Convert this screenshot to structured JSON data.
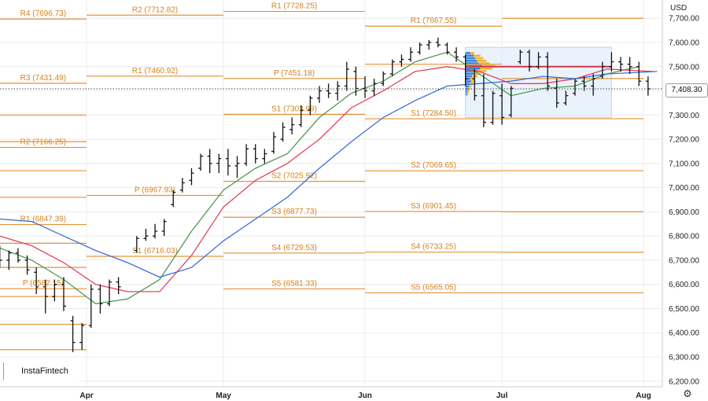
{
  "currency": "USD",
  "watermark": "InstaFintech",
  "last_price_label": "7,408.30",
  "chart_data": {
    "type": "ohlc",
    "yaxis": {
      "min": 6200,
      "max": 7700,
      "ticks": [
        "7,700.00",
        "7,600.00",
        "7,500.00",
        "7,400.00",
        "7,300.00",
        "7,200.00",
        "7,100.00",
        "7,000.00",
        "6,900.00",
        "6,800.00",
        "6,700.00",
        "6,600.00",
        "6,500.00",
        "6,400.00",
        "6,300.00",
        "6,200.00"
      ],
      "tick_values": [
        7700,
        7600,
        7500,
        7400,
        7300,
        7200,
        7100,
        7000,
        6900,
        6800,
        6700,
        6600,
        6500,
        6400,
        6300,
        6200
      ]
    },
    "xaxis": {
      "start": "2025-03-13",
      "end": "2025-08-06",
      "months": [
        {
          "label": "Apr",
          "date": "2025-04-01"
        },
        {
          "label": "May",
          "date": "2025-05-01"
        },
        {
          "label": "Jun",
          "date": "2025-06-01"
        },
        {
          "label": "Jul",
          "date": "2025-07-01"
        },
        {
          "label": "Aug",
          "date": "2025-08-01"
        }
      ]
    },
    "last_price": 7408.3,
    "pivot_levels": [
      {
        "label": "R4 (7696.73)",
        "value": 7696.73,
        "from": "2025-03-13",
        "to": "2025-04-01"
      },
      {
        "label": "R3 (7431.49)",
        "value": 7431.49,
        "from": "2025-03-13",
        "to": "2025-04-01"
      },
      {
        "label": "R2 (7166.25)",
        "value": 7166.25,
        "from": "2025-03-13",
        "to": "2025-04-01"
      },
      {
        "label": "R1 (6847.39)",
        "value": 6847.39,
        "from": "2025-03-13",
        "to": "2025-04-01"
      },
      {
        "label": "P (6582.15)",
        "value": 6582.15,
        "from": "2025-03-13",
        "to": "2025-04-01"
      },
      {
        "label": "R2 (7712.82)",
        "value": 7712.82,
        "from": "2025-04-01",
        "to": "2025-05-01"
      },
      {
        "label": "R1 (7460.92)",
        "value": 7460.92,
        "from": "2025-04-01",
        "to": "2025-05-01"
      },
      {
        "label": "P (6967.93)",
        "value": 6967.93,
        "from": "2025-04-01",
        "to": "2025-05-01"
      },
      {
        "label": "S1 (6716.03)",
        "value": 6716.03,
        "from": "2025-04-01",
        "to": "2025-05-01"
      },
      {
        "label": "R1 (7728.25)",
        "value": 7728.25,
        "from": "2025-05-01",
        "to": "2025-06-01"
      },
      {
        "label": "P (7451.18)",
        "value": 7451.18,
        "from": "2025-05-01",
        "to": "2025-06-01"
      },
      {
        "label": "S1 (7302.99)",
        "value": 7302.99,
        "from": "2025-05-01",
        "to": "2025-06-01"
      },
      {
        "label": "S2 (7025.92)",
        "value": 7025.92,
        "from": "2025-05-01",
        "to": "2025-06-01"
      },
      {
        "label": "S3 (6877.73)",
        "value": 6877.73,
        "from": "2025-05-01",
        "to": "2025-06-01"
      },
      {
        "label": "S4 (6729.53)",
        "value": 6729.53,
        "from": "2025-05-01",
        "to": "2025-06-01"
      },
      {
        "label": "S5 (6581.33)",
        "value": 6581.33,
        "from": "2025-05-01",
        "to": "2025-06-01"
      },
      {
        "label": "R1 (7667.55)",
        "value": 7667.55,
        "from": "2025-06-01",
        "to": "2025-07-01"
      },
      {
        "label": "S1 (7284.50)",
        "value": 7284.5,
        "from": "2025-06-01",
        "to": "2025-07-01"
      },
      {
        "label": "S2 (7069.65)",
        "value": 7069.65,
        "from": "2025-06-01",
        "to": "2025-07-01"
      },
      {
        "label": "S3 (6901.45)",
        "value": 6901.45,
        "from": "2025-06-01",
        "to": "2025-07-01"
      },
      {
        "label": "S4 (6733.25)",
        "value": 6733.25,
        "from": "2025-06-01",
        "to": "2025-07-01"
      },
      {
        "label": "S5 (6565.05)",
        "value": 6565.05,
        "from": "2025-06-01",
        "to": "2025-07-01"
      }
    ],
    "unlabeled_levels": [
      {
        "value": 7300,
        "from": "2025-03-13",
        "to": "2025-04-01"
      },
      {
        "value": 7190,
        "from": "2025-03-13",
        "to": "2025-04-01"
      },
      {
        "value": 7070,
        "from": "2025-03-13",
        "to": "2025-04-01"
      },
      {
        "value": 6960,
        "from": "2025-03-13",
        "to": "2025-04-01"
      },
      {
        "value": 6770,
        "from": "2025-03-13",
        "to": "2025-04-01"
      },
      {
        "value": 6670,
        "from": "2025-03-13",
        "to": "2025-04-01"
      },
      {
        "value": 6550,
        "from": "2025-03-13",
        "to": "2025-04-01"
      },
      {
        "value": 6435,
        "from": "2025-03-13",
        "to": "2025-04-01"
      },
      {
        "value": 6330,
        "from": "2025-03-13",
        "to": "2025-04-01"
      },
      {
        "value": 7510,
        "from": "2025-06-01",
        "to": "2025-07-01"
      },
      {
        "value": 7700,
        "from": "2025-07-01",
        "to": "2025-08-01"
      },
      {
        "value": 7451,
        "from": "2025-07-01",
        "to": "2025-08-01"
      },
      {
        "value": 7285,
        "from": "2025-07-01",
        "to": "2025-08-01"
      },
      {
        "value": 7070,
        "from": "2025-07-01",
        "to": "2025-08-01"
      },
      {
        "value": 6900,
        "from": "2025-07-01",
        "to": "2025-08-01"
      },
      {
        "value": 6733,
        "from": "2025-07-01",
        "to": "2025-08-01"
      },
      {
        "value": 6565,
        "from": "2025-07-01",
        "to": "2025-08-01"
      }
    ],
    "bars": [
      {
        "date": "2025-03-13",
        "o": 6720,
        "h": 6760,
        "l": 6670,
        "c": 6700
      },
      {
        "date": "2025-03-15",
        "o": 6700,
        "h": 6740,
        "l": 6660,
        "c": 6730
      },
      {
        "date": "2025-03-17",
        "o": 6730,
        "h": 6750,
        "l": 6690,
        "c": 6700
      },
      {
        "date": "2025-03-19",
        "o": 6700,
        "h": 6720,
        "l": 6640,
        "c": 6660
      },
      {
        "date": "2025-03-21",
        "o": 6650,
        "h": 6670,
        "l": 6560,
        "c": 6590
      },
      {
        "date": "2025-03-23",
        "o": 6590,
        "h": 6620,
        "l": 6480,
        "c": 6550
      },
      {
        "date": "2025-03-25",
        "o": 6550,
        "h": 6620,
        "l": 6530,
        "c": 6600
      },
      {
        "date": "2025-03-27",
        "o": 6600,
        "h": 6630,
        "l": 6490,
        "c": 6510
      },
      {
        "date": "2025-03-29",
        "o": 6450,
        "h": 6470,
        "l": 6320,
        "c": 6360
      },
      {
        "date": "2025-03-31",
        "o": 6360,
        "h": 6440,
        "l": 6330,
        "c": 6430
      },
      {
        "date": "2025-04-02",
        "o": 6430,
        "h": 6600,
        "l": 6420,
        "c": 6580
      },
      {
        "date": "2025-04-04",
        "o": 6580,
        "h": 6600,
        "l": 6480,
        "c": 6520
      },
      {
        "date": "2025-04-06",
        "o": 6520,
        "h": 6620,
        "l": 6510,
        "c": 6610
      },
      {
        "date": "2025-04-08",
        "o": 6610,
        "h": 6630,
        "l": 6560,
        "c": 6590
      },
      {
        "date": "2025-04-12",
        "o": 6740,
        "h": 6800,
        "l": 6730,
        "c": 6790
      },
      {
        "date": "2025-04-14",
        "o": 6790,
        "h": 6830,
        "l": 6780,
        "c": 6800
      },
      {
        "date": "2025-04-16",
        "o": 6800,
        "h": 6850,
        "l": 6790,
        "c": 6820
      },
      {
        "date": "2025-04-18",
        "o": 6820,
        "h": 6870,
        "l": 6800,
        "c": 6860
      },
      {
        "date": "2025-04-20",
        "o": 6930,
        "h": 6990,
        "l": 6920,
        "c": 6980
      },
      {
        "date": "2025-04-22",
        "o": 6990,
        "h": 7040,
        "l": 6980,
        "c": 7020
      },
      {
        "date": "2025-04-24",
        "o": 7030,
        "h": 7080,
        "l": 7010,
        "c": 7060
      },
      {
        "date": "2025-04-26",
        "o": 7080,
        "h": 7140,
        "l": 7070,
        "c": 7130
      },
      {
        "date": "2025-04-28",
        "o": 7130,
        "h": 7160,
        "l": 7060,
        "c": 7100
      },
      {
        "date": "2025-04-30",
        "o": 7100,
        "h": 7140,
        "l": 7060,
        "c": 7120
      },
      {
        "date": "2025-05-02",
        "o": 7120,
        "h": 7160,
        "l": 7050,
        "c": 7090
      },
      {
        "date": "2025-05-04",
        "o": 7090,
        "h": 7130,
        "l": 7040,
        "c": 7100
      },
      {
        "date": "2025-05-06",
        "o": 7100,
        "h": 7180,
        "l": 7090,
        "c": 7160
      },
      {
        "date": "2025-05-08",
        "o": 7160,
        "h": 7180,
        "l": 7100,
        "c": 7120
      },
      {
        "date": "2025-05-10",
        "o": 7120,
        "h": 7160,
        "l": 7100,
        "c": 7140
      },
      {
        "date": "2025-05-12",
        "o": 7150,
        "h": 7230,
        "l": 7140,
        "c": 7210
      },
      {
        "date": "2025-05-14",
        "o": 7200,
        "h": 7270,
        "l": 7190,
        "c": 7250
      },
      {
        "date": "2025-05-16",
        "o": 7240,
        "h": 7290,
        "l": 7220,
        "c": 7260
      },
      {
        "date": "2025-05-18",
        "o": 7260,
        "h": 7340,
        "l": 7250,
        "c": 7320
      },
      {
        "date": "2025-05-20",
        "o": 7320,
        "h": 7380,
        "l": 7300,
        "c": 7370
      },
      {
        "date": "2025-05-22",
        "o": 7370,
        "h": 7420,
        "l": 7350,
        "c": 7400
      },
      {
        "date": "2025-05-24",
        "o": 7400,
        "h": 7430,
        "l": 7370,
        "c": 7390
      },
      {
        "date": "2025-05-26",
        "o": 7390,
        "h": 7440,
        "l": 7360,
        "c": 7420
      },
      {
        "date": "2025-05-28",
        "o": 7420,
        "h": 7520,
        "l": 7400,
        "c": 7490
      },
      {
        "date": "2025-05-30",
        "o": 7480,
        "h": 7500,
        "l": 7380,
        "c": 7410
      },
      {
        "date": "2025-06-01",
        "o": 7410,
        "h": 7460,
        "l": 7370,
        "c": 7400
      },
      {
        "date": "2025-06-03",
        "o": 7400,
        "h": 7450,
        "l": 7380,
        "c": 7430
      },
      {
        "date": "2025-06-05",
        "o": 7430,
        "h": 7480,
        "l": 7420,
        "c": 7470
      },
      {
        "date": "2025-06-07",
        "o": 7470,
        "h": 7530,
        "l": 7460,
        "c": 7520
      },
      {
        "date": "2025-06-09",
        "o": 7520,
        "h": 7550,
        "l": 7500,
        "c": 7530
      },
      {
        "date": "2025-06-11",
        "o": 7530,
        "h": 7580,
        "l": 7520,
        "c": 7560
      },
      {
        "date": "2025-06-13",
        "o": 7560,
        "h": 7600,
        "l": 7550,
        "c": 7590
      },
      {
        "date": "2025-06-15",
        "o": 7590,
        "h": 7610,
        "l": 7570,
        "c": 7600
      },
      {
        "date": "2025-06-17",
        "o": 7600,
        "h": 7620,
        "l": 7580,
        "c": 7590
      },
      {
        "date": "2025-06-19",
        "o": 7590,
        "h": 7600,
        "l": 7550,
        "c": 7560
      },
      {
        "date": "2025-06-21",
        "o": 7560,
        "h": 7580,
        "l": 7520,
        "c": 7540
      },
      {
        "date": "2025-06-23",
        "o": 7540,
        "h": 7550,
        "l": 7420,
        "c": 7450
      },
      {
        "date": "2025-06-25",
        "o": 7450,
        "h": 7490,
        "l": 7360,
        "c": 7380
      },
      {
        "date": "2025-06-27",
        "o": 7380,
        "h": 7470,
        "l": 7250,
        "c": 7270
      },
      {
        "date": "2025-06-29",
        "o": 7270,
        "h": 7400,
        "l": 7260,
        "c": 7390
      },
      {
        "date": "2025-07-01",
        "o": 7380,
        "h": 7430,
        "l": 7260,
        "c": 7290
      },
      {
        "date": "2025-07-03",
        "o": 7300,
        "h": 7420,
        "l": 7290,
        "c": 7410
      },
      {
        "date": "2025-07-05",
        "o": 7520,
        "h": 7570,
        "l": 7510,
        "c": 7560
      },
      {
        "date": "2025-07-07",
        "o": 7560,
        "h": 7570,
        "l": 7480,
        "c": 7500
      },
      {
        "date": "2025-07-09",
        "o": 7500,
        "h": 7560,
        "l": 7490,
        "c": 7540
      },
      {
        "date": "2025-07-11",
        "o": 7540,
        "h": 7560,
        "l": 7400,
        "c": 7420
      },
      {
        "date": "2025-07-13",
        "o": 7410,
        "h": 7450,
        "l": 7330,
        "c": 7350
      },
      {
        "date": "2025-07-15",
        "o": 7350,
        "h": 7400,
        "l": 7340,
        "c": 7380
      },
      {
        "date": "2025-07-17",
        "o": 7390,
        "h": 7450,
        "l": 7380,
        "c": 7440
      },
      {
        "date": "2025-07-19",
        "o": 7440,
        "h": 7460,
        "l": 7400,
        "c": 7420
      },
      {
        "date": "2025-07-21",
        "o": 7420,
        "h": 7470,
        "l": 7380,
        "c": 7450
      },
      {
        "date": "2025-07-23",
        "o": 7460,
        "h": 7520,
        "l": 7450,
        "c": 7500
      },
      {
        "date": "2025-07-25",
        "o": 7500,
        "h": 7560,
        "l": 7480,
        "c": 7520
      },
      {
        "date": "2025-07-27",
        "o": 7520,
        "h": 7540,
        "l": 7480,
        "c": 7510
      },
      {
        "date": "2025-07-29",
        "o": 7510,
        "h": 7540,
        "l": 7470,
        "c": 7500
      },
      {
        "date": "2025-07-31",
        "o": 7500,
        "h": 7520,
        "l": 7420,
        "c": 7440
      },
      {
        "date": "2025-08-02",
        "o": 7440,
        "h": 7460,
        "l": 7380,
        "c": 7408
      }
    ],
    "moving_averages": [
      {
        "color": "#4f9a4f",
        "points": [
          [
            "2025-03-13",
            6750
          ],
          [
            "2025-03-20",
            6700
          ],
          [
            "2025-03-27",
            6620
          ],
          [
            "2025-04-03",
            6520
          ],
          [
            "2025-04-10",
            6540
          ],
          [
            "2025-04-17",
            6620
          ],
          [
            "2025-04-24",
            6820
          ],
          [
            "2025-05-01",
            6990
          ],
          [
            "2025-05-08",
            7080
          ],
          [
            "2025-05-15",
            7140
          ],
          [
            "2025-05-22",
            7290
          ],
          [
            "2025-05-29",
            7390
          ],
          [
            "2025-06-05",
            7440
          ],
          [
            "2025-06-12",
            7520
          ],
          [
            "2025-06-19",
            7560
          ],
          [
            "2025-06-26",
            7470
          ],
          [
            "2025-07-03",
            7380
          ],
          [
            "2025-07-10",
            7410
          ],
          [
            "2025-07-17",
            7420
          ],
          [
            "2025-07-24",
            7470
          ],
          [
            "2025-07-31",
            7500
          ]
        ]
      },
      {
        "color": "#e0445f",
        "points": [
          [
            "2025-03-13",
            6800
          ],
          [
            "2025-03-20",
            6760
          ],
          [
            "2025-03-27",
            6690
          ],
          [
            "2025-04-03",
            6600
          ],
          [
            "2025-04-10",
            6570
          ],
          [
            "2025-04-17",
            6570
          ],
          [
            "2025-04-24",
            6720
          ],
          [
            "2025-05-01",
            6920
          ],
          [
            "2025-05-08",
            7030
          ],
          [
            "2025-05-15",
            7100
          ],
          [
            "2025-05-22",
            7200
          ],
          [
            "2025-05-29",
            7330
          ],
          [
            "2025-06-05",
            7400
          ],
          [
            "2025-06-12",
            7480
          ],
          [
            "2025-06-19",
            7500
          ],
          [
            "2025-06-26",
            7480
          ],
          [
            "2025-07-03",
            7430
          ],
          [
            "2025-07-10",
            7430
          ],
          [
            "2025-07-17",
            7450
          ],
          [
            "2025-07-24",
            7490
          ],
          [
            "2025-08-03",
            7480
          ]
        ]
      },
      {
        "color": "#3a6fd8",
        "points": [
          [
            "2025-03-13",
            6870
          ],
          [
            "2025-03-20",
            6860
          ],
          [
            "2025-03-27",
            6800
          ],
          [
            "2025-04-03",
            6740
          ],
          [
            "2025-04-10",
            6690
          ],
          [
            "2025-04-17",
            6630
          ],
          [
            "2025-04-24",
            6670
          ],
          [
            "2025-05-01",
            6780
          ],
          [
            "2025-05-08",
            6870
          ],
          [
            "2025-05-15",
            6960
          ],
          [
            "2025-05-22",
            7080
          ],
          [
            "2025-05-29",
            7190
          ],
          [
            "2025-06-05",
            7290
          ],
          [
            "2025-06-12",
            7360
          ],
          [
            "2025-06-19",
            7420
          ],
          [
            "2025-06-26",
            7430
          ],
          [
            "2025-07-03",
            7440
          ],
          [
            "2025-07-10",
            7460
          ],
          [
            "2025-07-17",
            7450
          ],
          [
            "2025-07-24",
            7470
          ],
          [
            "2025-08-04",
            7480
          ]
        ]
      }
    ],
    "volume_profile": {
      "from": "2025-06-23",
      "to": "2025-07-25",
      "low": 7290,
      "high": 7580
    }
  }
}
